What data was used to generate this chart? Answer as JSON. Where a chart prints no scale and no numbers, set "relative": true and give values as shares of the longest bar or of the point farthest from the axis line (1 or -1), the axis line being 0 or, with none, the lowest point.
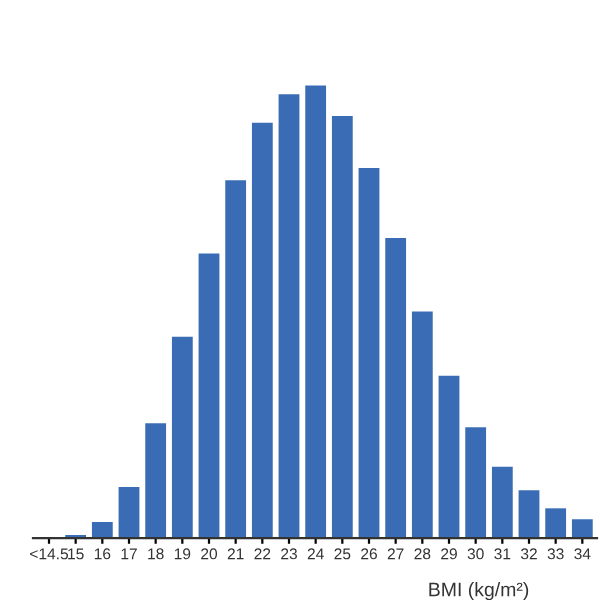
{
  "chart_data": {
    "type": "bar",
    "relative": true,
    "xlabel": "BMI (kg/m²)",
    "color": "#3a6cb5",
    "categories": [
      "<14.5",
      "15",
      "16",
      "17",
      "18",
      "19",
      "20",
      "21",
      "22",
      "23",
      "24",
      "25",
      "26",
      "27",
      "28",
      "29",
      "30",
      "31",
      "32",
      "33",
      "34"
    ],
    "values": [
      0,
      0.007,
      0.036,
      0.113,
      0.254,
      0.445,
      0.629,
      0.791,
      0.918,
      0.981,
      1,
      0.933,
      0.818,
      0.663,
      0.501,
      0.359,
      0.245,
      0.158,
      0.106,
      0.066,
      0.042
    ],
    "grid": false,
    "legend": false
  }
}
